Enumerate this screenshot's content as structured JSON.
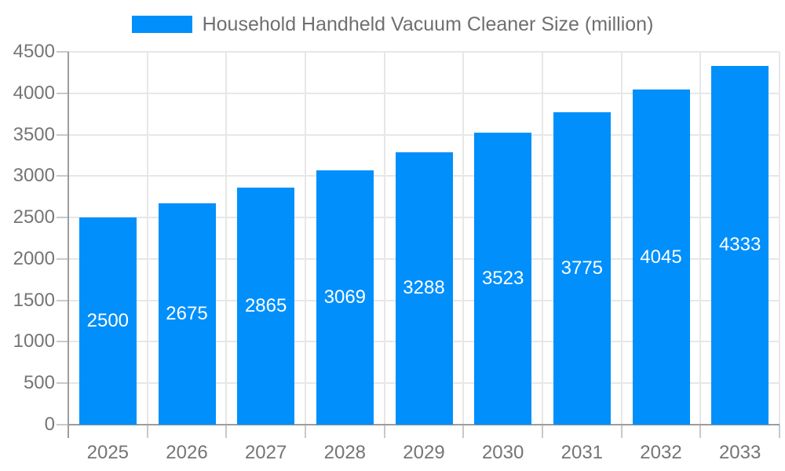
{
  "chart_data": {
    "type": "bar",
    "title": "Household Handheld Vacuum Cleaner Size (million)",
    "legend": {
      "label": "Household Handheld Vacuum Cleaner Size (million)",
      "position": "top"
    },
    "categories": [
      "2025",
      "2026",
      "2027",
      "2028",
      "2029",
      "2030",
      "2031",
      "2032",
      "2033"
    ],
    "series": [
      {
        "name": "Household Handheld Vacuum Cleaner Size (million)",
        "values": [
          2500,
          2675,
          2865,
          3069,
          3288,
          3523,
          3775,
          4045,
          4333
        ]
      }
    ],
    "value_labels_position": "inside-center",
    "xlabel": "",
    "ylabel": "",
    "ylim": [
      0,
      4500
    ],
    "ytick_step": 500,
    "yticks": [
      0,
      500,
      1000,
      1500,
      2000,
      2500,
      3000,
      3500,
      4000,
      4500
    ],
    "grid": {
      "horizontal": true,
      "vertical": true
    },
    "colors": {
      "bar": "#008FFB",
      "axis_line": "#9d9d9d",
      "gridline": "#e7e7e7",
      "tick": "#c9c9c9",
      "axis_label_text": "#757575",
      "legend_text": "#6f6f6f",
      "value_label_text": "#ffffff",
      "background": "#ffffff"
    }
  }
}
